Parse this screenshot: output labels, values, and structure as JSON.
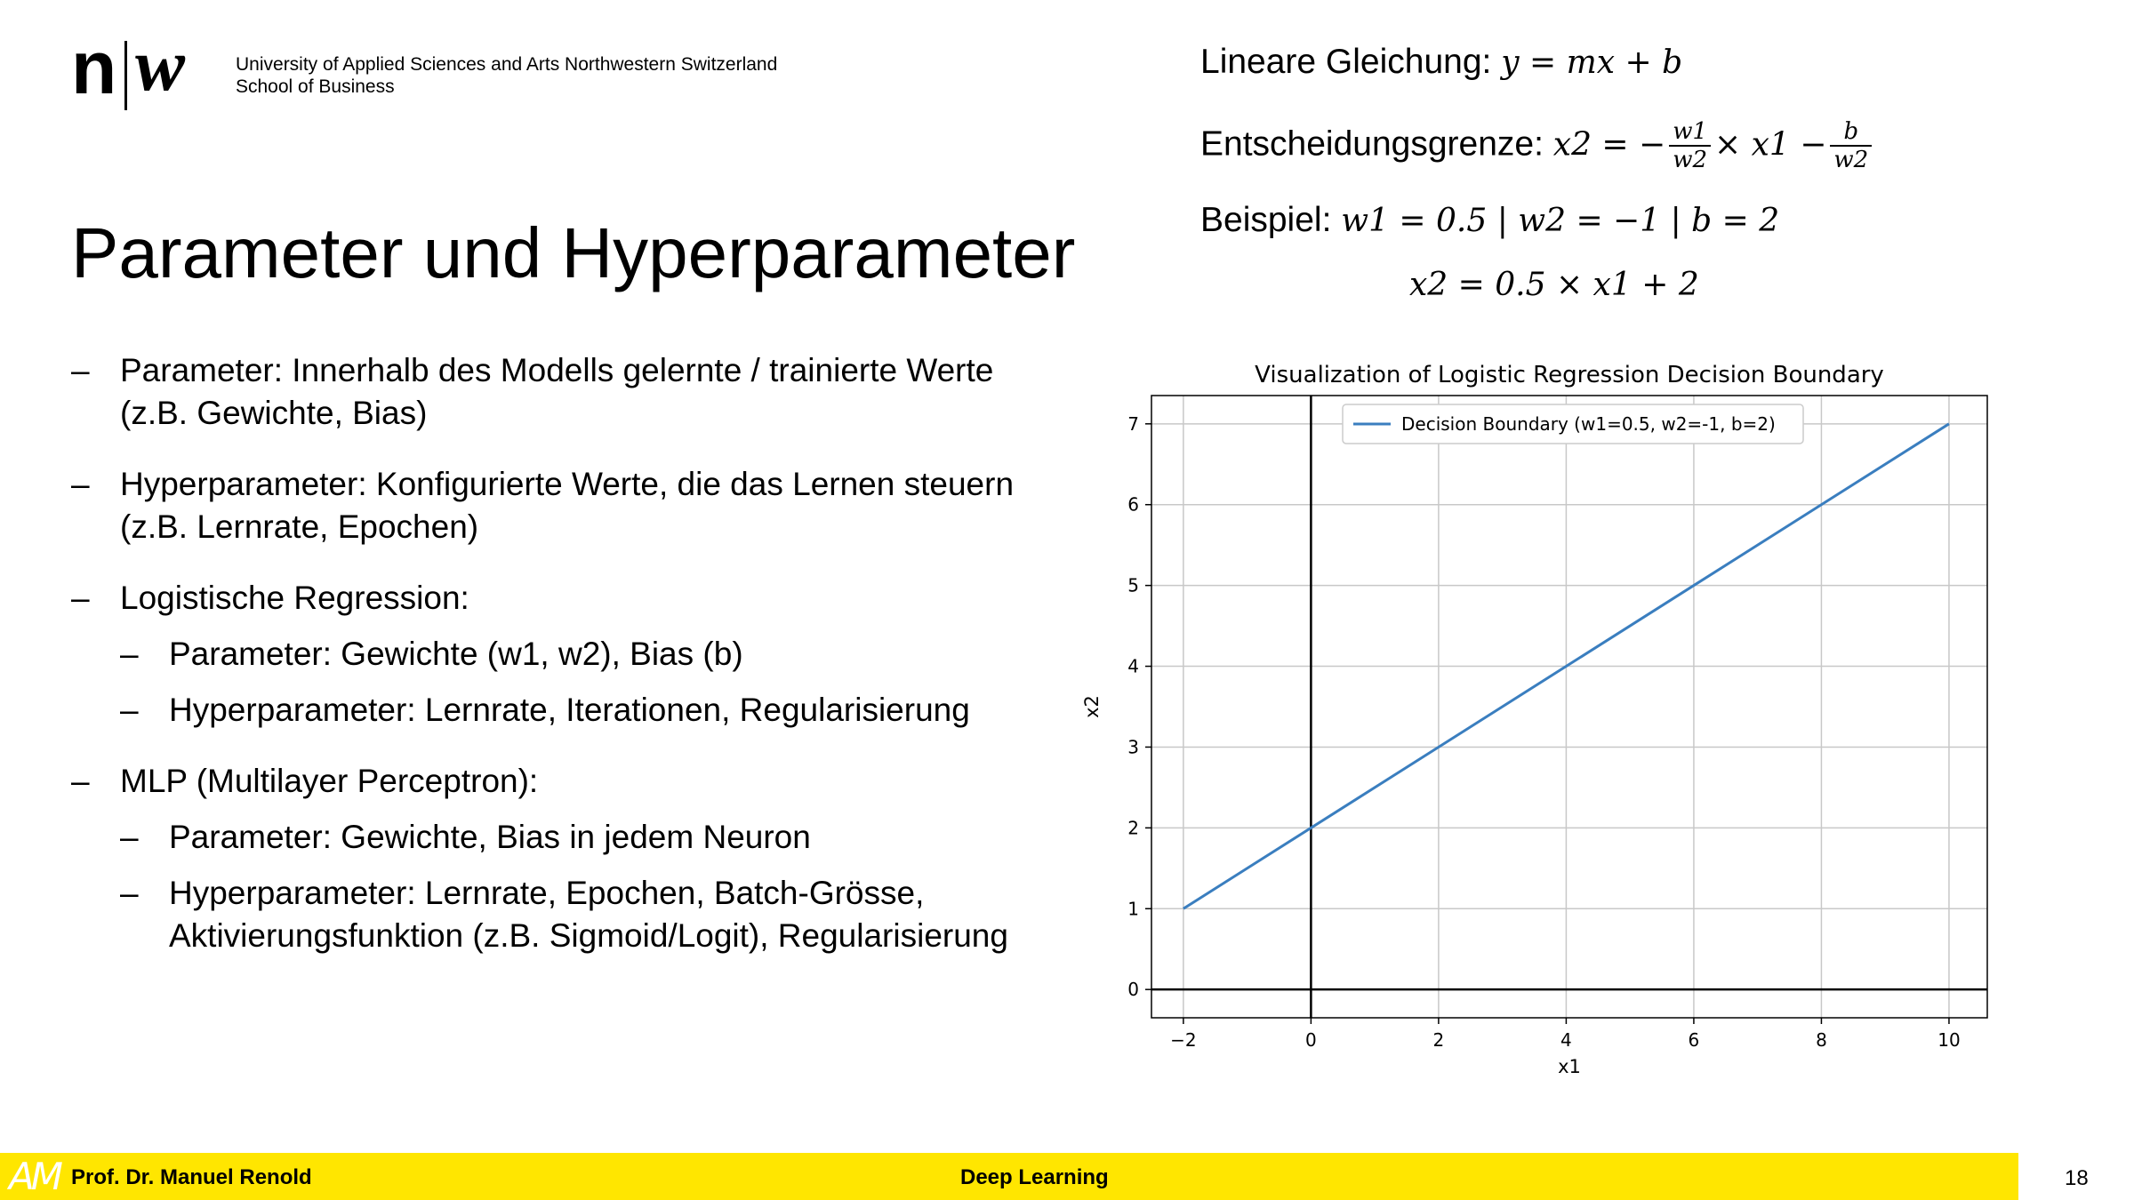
{
  "header": {
    "logo_n": "n",
    "logo_w": "w",
    "institution_line1": "University of Applied Sciences and Arts Northwestern Switzerland",
    "institution_line2": "School of Business"
  },
  "slide": {
    "title": "Parameter und Hyperparameter",
    "bullets": [
      {
        "level": 1,
        "text": "Parameter: Innerhalb des Modells gelernte / trainierte Werte (z.B. Gewichte, Bias)"
      },
      {
        "level": 1,
        "text": "Hyperparameter: Konfigurierte Werte, die das Lernen steuern (z.B. Lernrate, Epochen)"
      },
      {
        "level": 1,
        "text": "Logistische Regression:"
      },
      {
        "level": 2,
        "text": "Parameter: Gewichte (w1, w2), Bias (b)"
      },
      {
        "level": 2,
        "text": "Hyperparameter: Lernrate, Iterationen, Regularisierung"
      },
      {
        "level": 1,
        "text": "MLP (Multilayer Perceptron):"
      },
      {
        "level": 2,
        "text": "Parameter: Gewichte, Bias in jedem Neuron"
      },
      {
        "level": 2,
        "text": "Hyperparameter: Lernrate, Epochen, Batch-Grösse, Aktivierungsfunktion (z.B. Sigmoid/Logit), Regularisierung"
      }
    ],
    "bullet_marker": "–"
  },
  "formulas": {
    "linear_label": "Lineare Gleichung: ",
    "linear_math": "y = mx + b",
    "boundary_label": "Entscheidungsgrenze: ",
    "boundary_lhs": "x2 = −",
    "boundary_frac1_num": "w1",
    "boundary_frac1_den": "w2",
    "boundary_mid": "× x1 −",
    "boundary_frac2_num": "b",
    "boundary_frac2_den": "w2",
    "example_label": "Beispiel: ",
    "example_math": "w1 = 0.5 | w2 = −1 | b = 2",
    "example_result": "x2 = 0.5 × x1 + 2"
  },
  "chart_data": {
    "type": "line",
    "title": "Visualization of Logistic Regression Decision Boundary",
    "xlabel": "x1",
    "ylabel": "x2",
    "xlim": [
      -2.5,
      10.6
    ],
    "ylim": [
      -0.35,
      7.35
    ],
    "xticks": [
      -2,
      0,
      2,
      4,
      6,
      8,
      10
    ],
    "xtick_labels": [
      "−2",
      "0",
      "2",
      "4",
      "6",
      "8",
      "10"
    ],
    "yticks": [
      0,
      1,
      2,
      3,
      4,
      5,
      6,
      7
    ],
    "ytick_labels": [
      "0",
      "1",
      "2",
      "3",
      "4",
      "5",
      "6",
      "7"
    ],
    "grid": true,
    "legend_position": "top-center",
    "series": [
      {
        "name": "Decision Boundary (w1=0.5, w2=-1, b=2)",
        "x": [
          -2,
          10
        ],
        "y": [
          1,
          7
        ],
        "color": "#3a7ebf"
      }
    ],
    "reference_lines": {
      "x0": true,
      "y0": true,
      "color": "#000000"
    }
  },
  "footer": {
    "logo_text": "AM",
    "author": "Prof. Dr. Manuel Renold",
    "course": "Deep Learning",
    "page_number": "18",
    "bar_color": "#ffe600"
  }
}
